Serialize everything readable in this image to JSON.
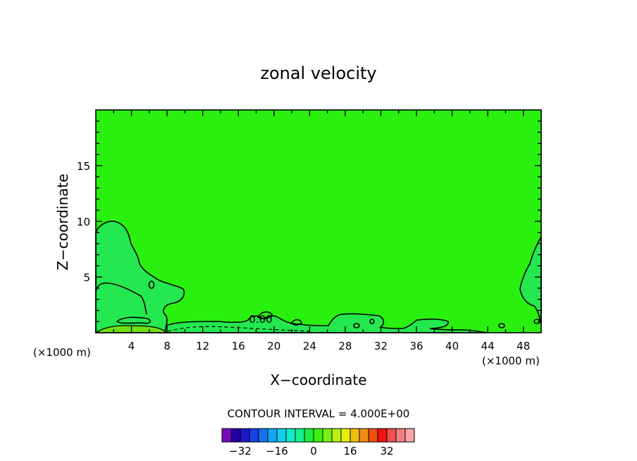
{
  "chart_data": {
    "type": "contour",
    "title": "zonal velocity",
    "xlabel": "X−coordinate",
    "ylabel": "Z−coordinate",
    "x_unit_left": "(×1000 m)",
    "x_unit_right": "(×1000 m)",
    "xlim": [
      0,
      50
    ],
    "ylim": [
      0,
      20
    ],
    "x_ticks": [
      4,
      8,
      12,
      16,
      20,
      24,
      28,
      32,
      36,
      40,
      44,
      48
    ],
    "y_ticks": [
      5,
      10,
      15
    ],
    "contour_label": "0.00",
    "contour_interval_text": "CONTOUR INTERVAL = 4.000E+00",
    "colorbar": {
      "colors": [
        "#7a0ab8",
        "#2200a6",
        "#1a1acc",
        "#1440e6",
        "#1474f0",
        "#14a8f4",
        "#10d0f0",
        "#10ecc4",
        "#12f090",
        "#18f040",
        "#3ef010",
        "#7af010",
        "#b6f010",
        "#e6f010",
        "#f0c010",
        "#f08c10",
        "#f05010",
        "#f01414",
        "#f05050",
        "#f08080",
        "#f8a4a4"
      ],
      "tick_labels": [
        "−32",
        "−16",
        "0",
        "16",
        "32"
      ]
    },
    "colors": {
      "field_main": "#2af010",
      "field_weak_neg": "#24e850",
      "field_pos": "#70e010"
    }
  }
}
